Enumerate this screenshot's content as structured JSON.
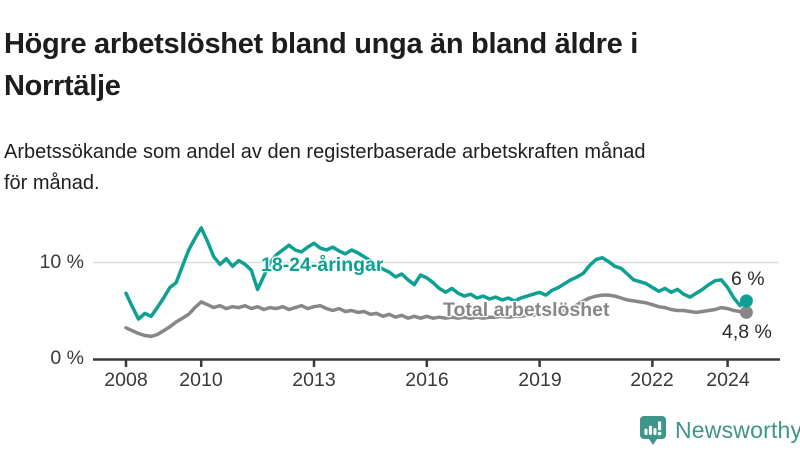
{
  "header": {
    "title": "Högre arbetslöshet bland unga än bland äldre i\nNorrtälje",
    "subtitle": "Arbetssökande som andel av den registerbaserade arbetskraften månad\nför månad."
  },
  "chart_data": {
    "type": "line",
    "title": "Högre arbetslöshet bland unga än bland äldre i Norrtälje",
    "subtitle": "Arbetssökande som andel av den registerbaserade arbetskraften månad för månad.",
    "unit": "%",
    "grid": "single horizontal gridline at 10 %",
    "legend_position": "inline labels on lines",
    "x_axis": {
      "ticks": [
        2008,
        2010,
        2013,
        2016,
        2019,
        2022,
        2024
      ],
      "labels": [
        "2008",
        "2010",
        "2013",
        "2016",
        "2019",
        "2022",
        "2024"
      ],
      "range_years": [
        2008,
        2024.5
      ]
    },
    "y_axis": {
      "ticks": [
        0,
        10
      ],
      "labels": [
        "0 %",
        "10 %"
      ],
      "range": [
        0,
        14.5
      ]
    },
    "x_start_year": 2008,
    "x_step_months": 2,
    "series": [
      {
        "name": "18-24-åringar",
        "color": "#0ea093",
        "end_label": "6 %",
        "end_value": 6.0,
        "values": [
          6.8,
          5.4,
          4.1,
          4.7,
          4.4,
          5.3,
          6.3,
          7.4,
          7.9,
          9.6,
          11.3,
          12.5,
          13.6,
          12.2,
          10.6,
          9.8,
          10.4,
          9.6,
          10.2,
          9.8,
          9.2,
          7.2,
          8.6,
          10.0,
          10.8,
          11.3,
          11.8,
          11.3,
          11.1,
          11.6,
          12.0,
          11.5,
          11.3,
          11.6,
          11.2,
          10.9,
          11.3,
          11.0,
          10.6,
          10.2,
          9.7,
          9.3,
          9.0,
          8.5,
          8.8,
          8.2,
          7.7,
          8.7,
          8.4,
          7.9,
          7.3,
          6.9,
          7.3,
          6.8,
          6.5,
          6.7,
          6.3,
          6.5,
          6.2,
          6.4,
          6.1,
          6.3,
          6.0,
          6.3,
          6.5,
          6.7,
          6.9,
          6.6,
          7.1,
          7.4,
          7.8,
          8.2,
          8.5,
          8.9,
          9.7,
          10.3,
          10.5,
          10.1,
          9.6,
          9.4,
          8.8,
          8.2,
          8.0,
          7.8,
          7.4,
          7.0,
          7.3,
          6.9,
          7.2,
          6.7,
          6.4,
          6.8,
          7.2,
          7.7,
          8.1,
          8.2,
          7.4,
          6.3,
          5.5,
          6.0
        ]
      },
      {
        "name": "Total arbetslöshet",
        "color": "#878787",
        "end_label": "4,8 %",
        "end_value": 4.8,
        "values": [
          3.2,
          2.9,
          2.6,
          2.4,
          2.3,
          2.5,
          2.9,
          3.3,
          3.8,
          4.2,
          4.6,
          5.3,
          5.9,
          5.6,
          5.3,
          5.5,
          5.2,
          5.4,
          5.3,
          5.5,
          5.2,
          5.4,
          5.1,
          5.3,
          5.2,
          5.4,
          5.1,
          5.3,
          5.5,
          5.2,
          5.4,
          5.5,
          5.2,
          5.0,
          5.2,
          4.9,
          5.0,
          4.8,
          4.9,
          4.6,
          4.7,
          4.4,
          4.6,
          4.3,
          4.5,
          4.2,
          4.4,
          4.2,
          4.4,
          4.2,
          4.3,
          4.2,
          4.3,
          4.2,
          4.3,
          4.2,
          4.3,
          4.2,
          4.3,
          4.3,
          4.4,
          4.3,
          4.4,
          4.4,
          4.5,
          4.5,
          4.6,
          4.5,
          4.7,
          4.8,
          5.0,
          5.2,
          5.6,
          6.0,
          6.3,
          6.5,
          6.6,
          6.6,
          6.5,
          6.3,
          6.1,
          6.0,
          5.9,
          5.8,
          5.6,
          5.4,
          5.3,
          5.1,
          5.0,
          5.0,
          4.9,
          4.8,
          4.9,
          5.0,
          5.1,
          5.3,
          5.2,
          5.0,
          4.9,
          4.8
        ]
      }
    ]
  },
  "footer": {
    "brand": "Newsworthy",
    "brand_color": "#3e9589",
    "logo_icon": "bar-chart-speech-bubble"
  }
}
